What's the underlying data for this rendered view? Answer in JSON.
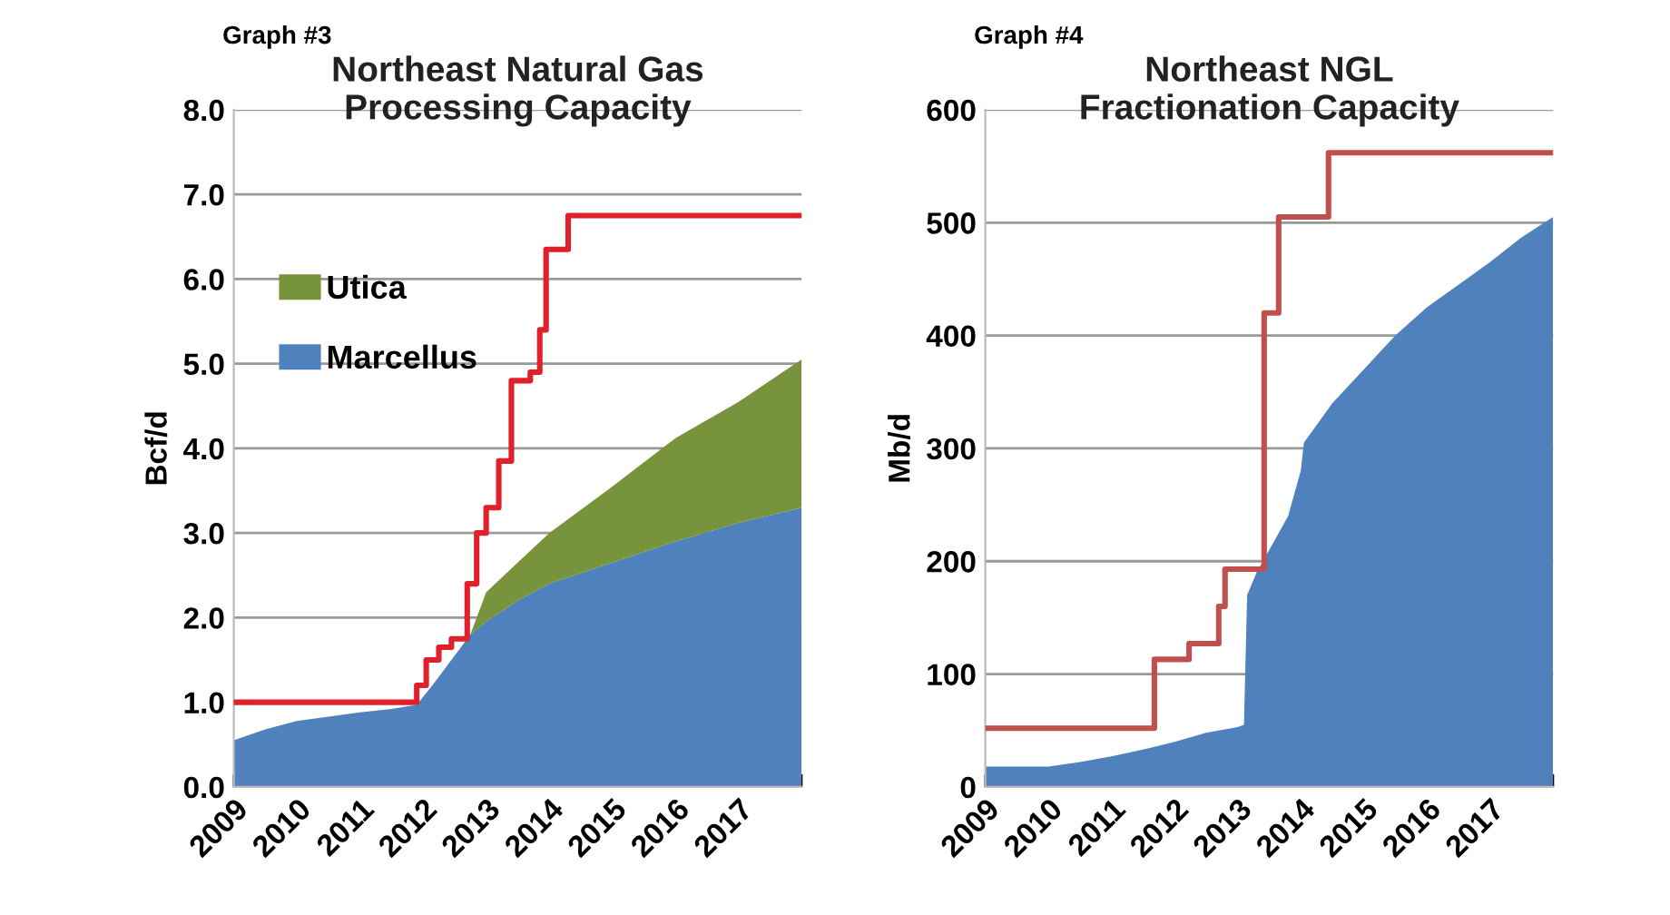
{
  "chart_data": [
    {
      "type": "area",
      "title": "Northeast Natural Gas\nProcessing Capacity",
      "ylabel": "Bcf/d",
      "annotations": [
        "Graph #3"
      ],
      "stacked": true,
      "legend": "top left",
      "grid": "y",
      "xlim": [
        2009,
        2018
      ],
      "xticks": [
        2009,
        2010,
        2011,
        2012,
        2013,
        2014,
        2015,
        2016,
        2017,
        {
          "value": 2018,
          "label": null
        }
      ],
      "ylim": [
        0,
        8
      ],
      "yticks": [
        {
          "value": 0,
          "label": "0.0"
        },
        {
          "value": 1,
          "label": "1.0"
        },
        {
          "value": 2,
          "label": "2.0"
        },
        {
          "value": 3,
          "label": "3.0"
        },
        {
          "value": 4,
          "label": "4.0"
        },
        {
          "value": 5,
          "label": "5.0"
        },
        {
          "value": 6,
          "label": "6.0"
        },
        {
          "value": 7,
          "label": "7.0"
        },
        {
          "value": 8,
          "label": "8.0"
        }
      ],
      "series": [
        {
          "name": "Marcellus",
          "color": "#4f81bd",
          "x": [
            2009,
            2009.5,
            2010,
            2010.5,
            2011,
            2011.5,
            2011.9,
            2012.2,
            2012.5,
            2012.75,
            2013,
            2013.5,
            2014,
            2015,
            2016,
            2017,
            2018
          ],
          "values": [
            0.55,
            0.68,
            0.78,
            0.83,
            0.88,
            0.92,
            0.97,
            1.25,
            1.55,
            1.8,
            1.95,
            2.2,
            2.4,
            2.65,
            2.9,
            3.12,
            3.3
          ]
        },
        {
          "name": "Utica",
          "color": "#77933c",
          "x": [
            2009,
            2009.5,
            2010,
            2010.5,
            2011,
            2011.5,
            2011.9,
            2012.2,
            2012.5,
            2012.75,
            2013,
            2013.5,
            2014,
            2015,
            2016,
            2017,
            2018
          ],
          "values": [
            0,
            0,
            0,
            0,
            0,
            0,
            0,
            0,
            0,
            0,
            0.35,
            0.45,
            0.6,
            0.9,
            1.22,
            1.43,
            1.75
          ]
        },
        {
          "type": "step",
          "color": "#e0202a",
          "x": [
            2009,
            2011.9,
            2012.05,
            2012.25,
            2012.45,
            2012.7,
            2012.85,
            2013.0,
            2013.2,
            2013.4,
            2013.7,
            2013.85,
            2013.95,
            2014.3,
            2018
          ],
          "values": [
            1.0,
            1.2,
            1.5,
            1.65,
            1.75,
            2.4,
            3.0,
            3.3,
            3.85,
            4.8,
            4.9,
            5.4,
            6.35,
            6.75,
            6.75
          ]
        }
      ]
    },
    {
      "type": "area",
      "title": "Northeast NGL\nFractionation Capacity",
      "ylabel": "Mb/d",
      "annotations": [
        "Graph #4"
      ],
      "grid": "y",
      "xlim": [
        2009,
        2018
      ],
      "xticks": [
        2009,
        2010,
        2011,
        2012,
        2013,
        2014,
        2015,
        2016,
        2017,
        {
          "value": 2018,
          "label": null
        }
      ],
      "ylim": [
        0,
        600
      ],
      "yticks": [
        0,
        100,
        200,
        300,
        400,
        500,
        600
      ],
      "series": [
        {
          "color": "#4f81bd",
          "x": [
            2009,
            2010,
            2010.5,
            2011,
            2011.5,
            2012,
            2012.5,
            2013,
            2013.1,
            2013.15,
            2013.3,
            2013.6,
            2013.8,
            2014.0,
            2014.05,
            2014.5,
            2015,
            2015.5,
            2016,
            2016.5,
            2017,
            2017.5,
            2018
          ],
          "values": [
            18,
            18,
            22,
            27,
            33,
            40,
            48,
            53,
            55,
            170,
            190,
            220,
            240,
            280,
            305,
            340,
            370,
            400,
            425,
            445,
            465,
            487,
            505
          ]
        },
        {
          "type": "step",
          "color": "#c0504d",
          "x": [
            2009,
            2011.68,
            2012.23,
            2012.7,
            2012.8,
            2013.42,
            2013.65,
            2014.44,
            2018
          ],
          "values": [
            52,
            113,
            127,
            160,
            193,
            420,
            505,
            562,
            562
          ]
        }
      ]
    }
  ]
}
